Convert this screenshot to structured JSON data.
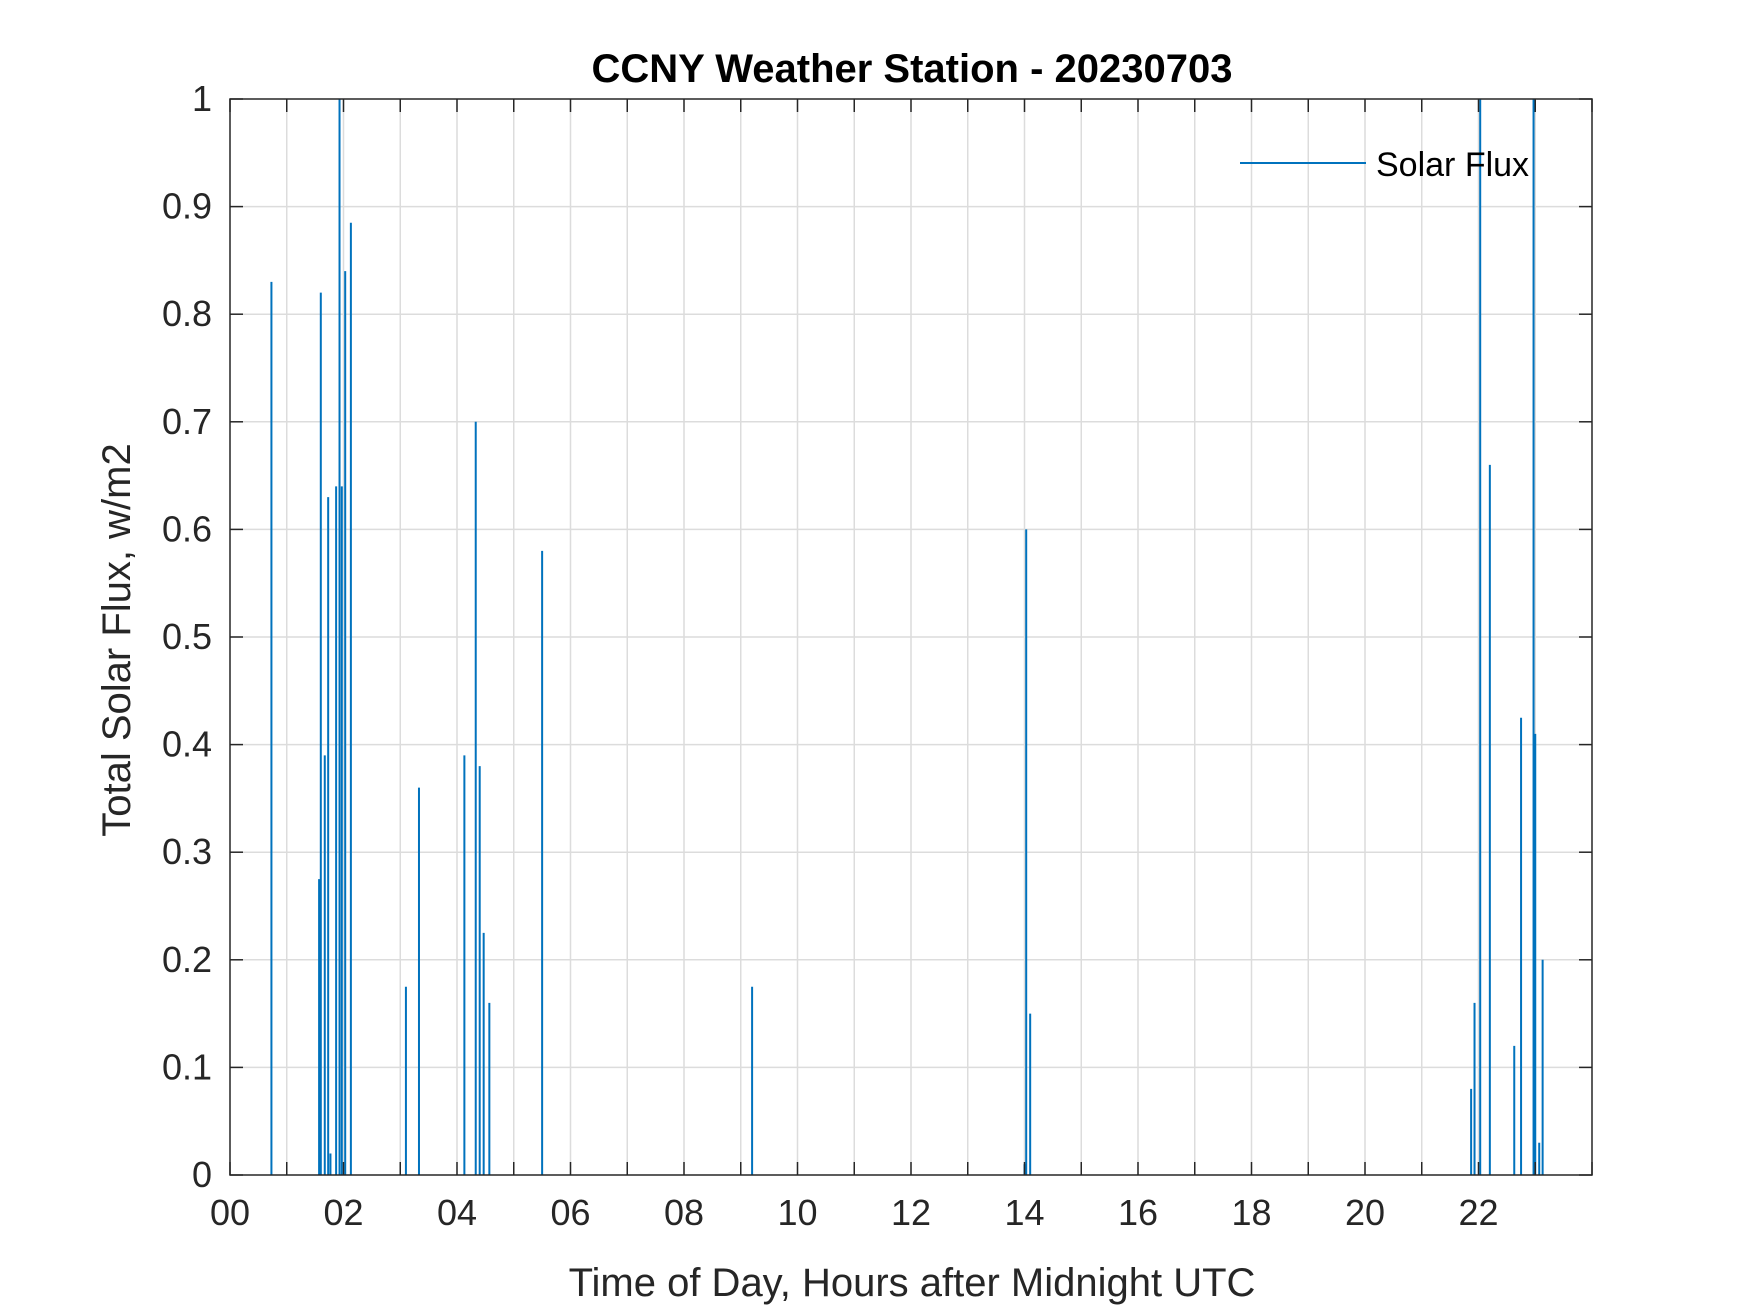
{
  "chart_data": {
    "type": "line",
    "title": "CCNY Weather Station - 20230703",
    "xlabel": "Time of Day, Hours after Midnight UTC",
    "ylabel": "Total Solar Flux, w/m2",
    "xlim": [
      0,
      24
    ],
    "ylim": [
      0,
      1
    ],
    "x_ticks": [
      0,
      2,
      4,
      6,
      8,
      10,
      12,
      14,
      16,
      18,
      20,
      22
    ],
    "x_tick_labels": [
      "00",
      "02",
      "04",
      "06",
      "08",
      "10",
      "12",
      "14",
      "16",
      "18",
      "20",
      "22"
    ],
    "y_ticks": [
      0,
      0.1,
      0.2,
      0.3,
      0.4,
      0.5,
      0.6,
      0.7,
      0.8,
      0.9,
      1
    ],
    "y_tick_labels": [
      "0",
      "0.1",
      "0.2",
      "0.3",
      "0.4",
      "0.5",
      "0.6",
      "0.7",
      "0.8",
      "0.9",
      "1"
    ],
    "grid": true,
    "legend": {
      "position": "top-right",
      "entries": [
        "Solar Flux"
      ]
    },
    "series": [
      {
        "name": "Solar Flux",
        "color": "#0072BD",
        "spikes": [
          [
            0.73,
            0.83
          ],
          [
            1.57,
            0.275
          ],
          [
            1.6,
            0.82
          ],
          [
            1.67,
            0.39
          ],
          [
            1.73,
            0.63
          ],
          [
            1.77,
            0.02
          ],
          [
            1.87,
            0.64
          ],
          [
            1.93,
            1.0
          ],
          [
            1.97,
            0.64
          ],
          [
            2.03,
            0.84
          ],
          [
            2.13,
            0.885
          ],
          [
            3.1,
            0.175
          ],
          [
            3.33,
            0.36
          ],
          [
            4.13,
            0.39
          ],
          [
            4.33,
            0.7
          ],
          [
            4.4,
            0.38
          ],
          [
            4.47,
            0.225
          ],
          [
            4.57,
            0.16
          ],
          [
            5.5,
            0.58
          ],
          [
            9.2,
            0.175
          ],
          [
            14.0,
            0.01
          ],
          [
            14.03,
            0.6
          ],
          [
            14.1,
            0.15
          ],
          [
            21.87,
            0.08
          ],
          [
            21.93,
            0.16
          ],
          [
            22.03,
            1.0
          ],
          [
            22.2,
            0.66
          ],
          [
            22.63,
            0.12
          ],
          [
            22.75,
            0.425
          ],
          [
            22.97,
            1.0
          ],
          [
            23.0,
            0.41
          ],
          [
            23.07,
            0.03
          ],
          [
            23.13,
            0.2
          ]
        ]
      }
    ]
  }
}
